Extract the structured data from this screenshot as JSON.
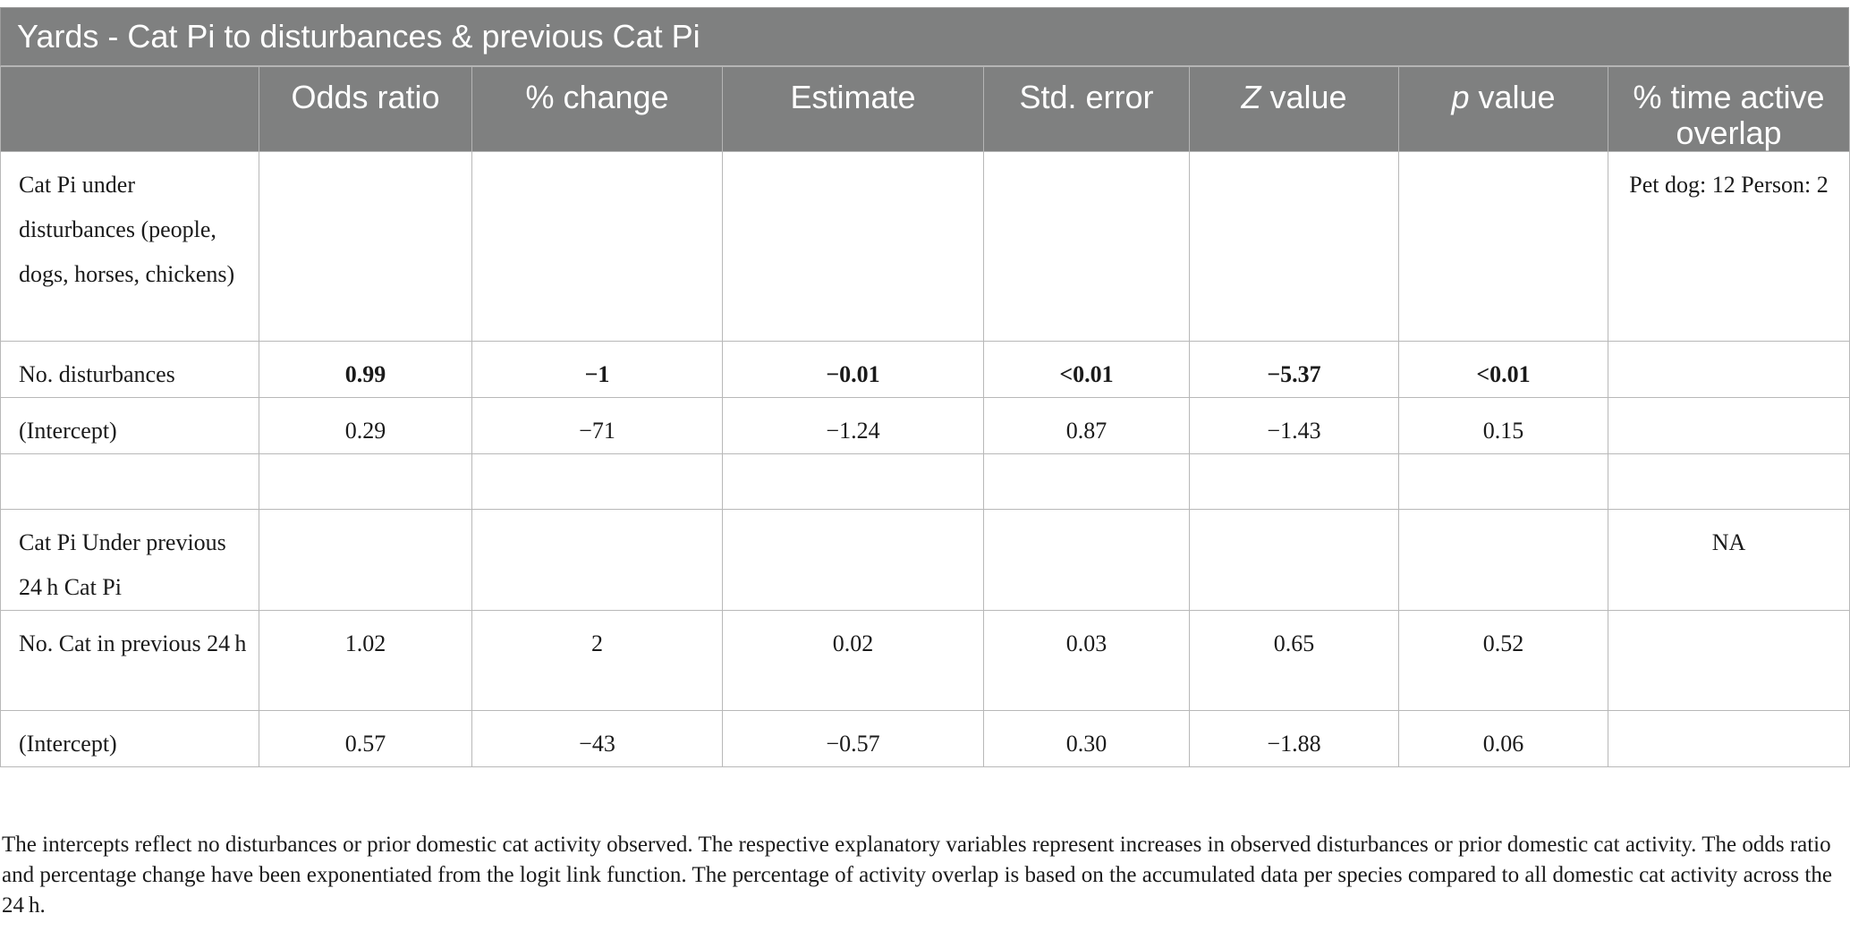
{
  "table": {
    "title": "Yards - Cat Pi to disturbances & previous Cat Pi",
    "headers": {
      "col0": "",
      "odds": "Odds ratio",
      "pct": "% change",
      "est": "Estimate",
      "se": "Std. error",
      "z_italic": "Z",
      "z_rest": " value",
      "p_italic": "p",
      "p_rest": " value",
      "overlap": "% time active overlap"
    },
    "rows": [
      {
        "label": "Cat Pi under disturbances (people, dogs, horses, chickens)",
        "odds": "",
        "pct": "",
        "est": "",
        "se": "",
        "z": "",
        "p": "",
        "overlap": "Pet dog: 12 Person: 2"
      },
      {
        "label": "No. disturbances",
        "odds": "0.99",
        "pct": "−1",
        "est": "−0.01",
        "se": "<0.01",
        "z": "−5.37",
        "p": "<0.01",
        "overlap": ""
      },
      {
        "label": "(Intercept)",
        "odds": "0.29",
        "pct": "−71",
        "est": "−1.24",
        "se": "0.87",
        "z": "−1.43",
        "p": "0.15",
        "overlap": ""
      },
      {
        "label": "",
        "odds": "",
        "pct": "",
        "est": "",
        "se": "",
        "z": "",
        "p": "",
        "overlap": ""
      },
      {
        "label": "Cat Pi Under previous 24 h Cat Pi",
        "odds": "",
        "pct": "",
        "est": "",
        "se": "",
        "z": "",
        "p": "",
        "overlap": "NA"
      },
      {
        "label": "No. Cat in previous 24 h",
        "odds": "1.02",
        "pct": "2",
        "est": "0.02",
        "se": "0.03",
        "z": "0.65",
        "p": "0.52",
        "overlap": ""
      },
      {
        "label": "(Intercept)",
        "odds": "0.57",
        "pct": "−43",
        "est": "−0.57",
        "se": "0.30",
        "z": "−1.88",
        "p": "0.06",
        "overlap": ""
      }
    ]
  },
  "footnote": "The intercepts reflect no disturbances or prior domestic cat activity observed. The respective explanatory variables represent increases in observed disturbances or prior domestic cat activity. The odds ratio and percentage change have been exponentiated from the logit link function. The percentage of activity overlap is based on the accumulated data per species compared to all domestic cat activity across the 24 h."
}
